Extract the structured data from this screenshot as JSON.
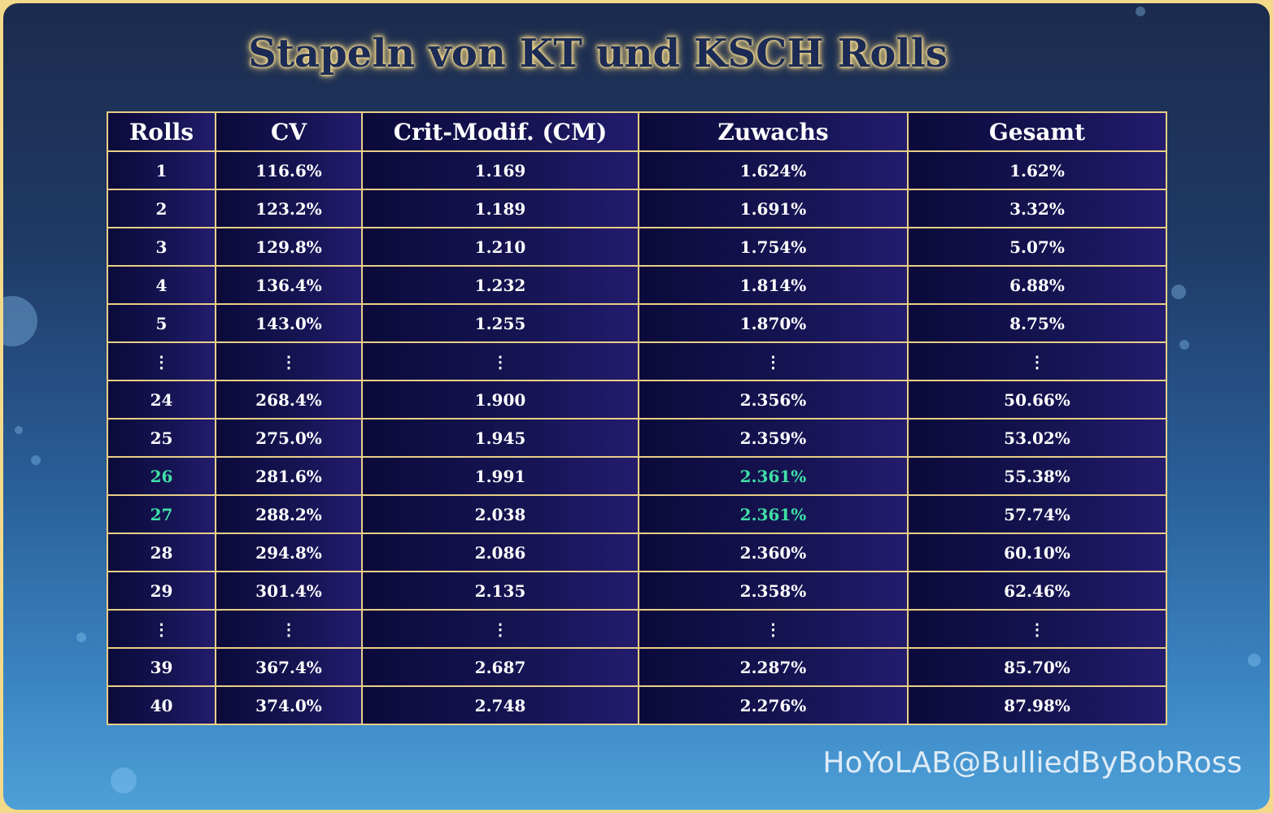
{
  "title": "Stapeln von KT und KSCH Rolls",
  "table": {
    "headers": [
      "Rolls",
      "CV",
      "Crit-Modif. (CM)",
      "Zuwachs",
      "Gesamt"
    ],
    "rows": [
      [
        "1",
        "116.6%",
        "1.169",
        "1.624%",
        "1.62%"
      ],
      [
        "2",
        "123.2%",
        "1.189",
        "1.691%",
        "3.32%"
      ],
      [
        "3",
        "129.8%",
        "1.210",
        "1.754%",
        "5.07%"
      ],
      [
        "4",
        "136.4%",
        "1.232",
        "1.814%",
        "6.88%"
      ],
      [
        "5",
        "143.0%",
        "1.255",
        "1.870%",
        "8.75%"
      ],
      [
        "⋮",
        "⋮",
        "⋮",
        "⋮",
        "⋮"
      ],
      [
        "24",
        "268.4%",
        "1.900",
        "2.356%",
        "50.66%"
      ],
      [
        "25",
        "275.0%",
        "1.945",
        "2.359%",
        "53.02%"
      ],
      [
        "26",
        "281.6%",
        "1.991",
        "2.361%",
        "55.38%"
      ],
      [
        "27",
        "288.2%",
        "2.038",
        "2.361%",
        "57.74%"
      ],
      [
        "28",
        "294.8%",
        "2.086",
        "2.360%",
        "60.10%"
      ],
      [
        "29",
        "301.4%",
        "2.135",
        "2.358%",
        "62.46%"
      ],
      [
        "⋮",
        "⋮",
        "⋮",
        "⋮",
        "⋮"
      ],
      [
        "39",
        "367.4%",
        "2.687",
        "2.287%",
        "85.70%"
      ],
      [
        "40",
        "374.0%",
        "2.748",
        "2.276%",
        "87.98%"
      ]
    ],
    "highlight_rows": [
      8,
      9
    ],
    "highlight_color": "#3fe0a6"
  },
  "watermark": "HoYoLAB@BulliedByBobRoss",
  "colors": {
    "border": "#f3d98a",
    "table_line": "#e8cf86",
    "cell_bg": "#120f4a",
    "title_text": "#1c2b55",
    "title_glow": "#f7df95"
  }
}
